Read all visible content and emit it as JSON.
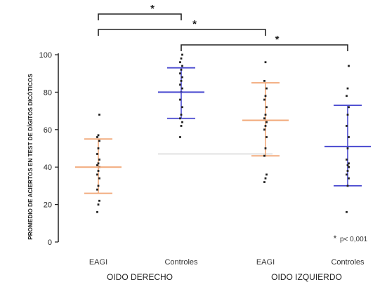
{
  "chart_data": {
    "type": "scatter",
    "ylabel": "PROMEDIO DE ACIERTOS EN TEST DE DÍGITOS DICÓTICOS",
    "ylim": [
      0,
      100
    ],
    "yticks": [
      0,
      20,
      40,
      60,
      80,
      100
    ],
    "categories": [
      "EAGI",
      "Controles",
      "EAGI",
      "Controles"
    ],
    "category_groups": [
      {
        "label": "OIDO DERECHO",
        "members": [
          0,
          1
        ]
      },
      {
        "label": "OIDO IZQUIERDO",
        "members": [
          2,
          3
        ]
      }
    ],
    "colors": {
      "EAGI": "#f2a97a",
      "Controles": "#4a4ad0",
      "points": "#222222",
      "reference_line": "#cccccc"
    },
    "groups": [
      {
        "category": "EAGI",
        "side": "OIDO DERECHO",
        "mean": 40,
        "upper": 55,
        "lower": 26,
        "points": [
          16,
          20,
          22,
          28,
          30,
          34,
          36,
          38,
          40,
          41,
          42,
          44,
          47,
          50,
          54,
          56,
          57,
          68
        ]
      },
      {
        "category": "Controles",
        "side": "OIDO DERECHO",
        "mean": 80,
        "upper": 93,
        "lower": 66,
        "points": [
          56,
          62,
          64,
          66,
          68,
          72,
          76,
          80,
          82,
          84,
          86,
          88,
          90,
          92,
          94,
          96,
          98,
          100
        ]
      },
      {
        "category": "EAGI",
        "side": "OIDO IZQUIERDO",
        "mean": 65,
        "upper": 85,
        "lower": 46,
        "points": [
          32,
          34,
          36,
          46,
          50,
          56,
          60,
          62,
          64,
          66,
          68,
          72,
          76,
          78,
          82,
          86,
          96
        ]
      },
      {
        "category": "Controles",
        "side": "OIDO IZQUIERDO",
        "mean": 51,
        "upper": 73,
        "lower": 30,
        "points": [
          16,
          30,
          34,
          36,
          38,
          40,
          40,
          41,
          42,
          44,
          50,
          56,
          62,
          68,
          72,
          78,
          82,
          94
        ]
      }
    ],
    "reference_line": {
      "value": 47,
      "from_category": 1,
      "to_category": 2
    },
    "significance": [
      {
        "from": 0,
        "to": 1,
        "label": "*"
      },
      {
        "from": 0,
        "to": 2,
        "label": "*"
      },
      {
        "from": 1,
        "to": 3,
        "label": "*"
      }
    ],
    "annotation": {
      "marker": "*",
      "text": "p< 0,001"
    }
  }
}
